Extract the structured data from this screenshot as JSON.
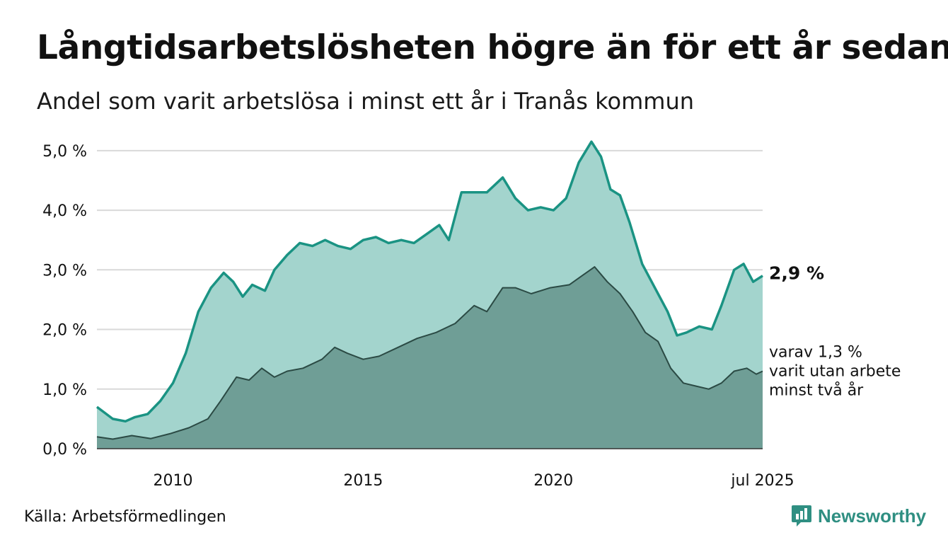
{
  "title": "Långtidsarbetslösheten högre än för ett år sedan",
  "subtitle": "Andel som varit arbetslösa i minst ett år i Tranås kommun",
  "source": "Källa: Arbetsförmedlingen",
  "brand": {
    "name": "Newsworthy",
    "icon": "bar-chart-logo-icon",
    "color": "#2f8f82"
  },
  "colors": {
    "upper_fill": "#a3d4cd",
    "upper_line": "#1a9383",
    "lower_fill": "#6f9e96",
    "lower_line": "#2b4a44",
    "grid": "#d9d9d9"
  },
  "chart_data": {
    "type": "area",
    "x_start": "2008-01",
    "x_end": "2025-07",
    "x_ticks": [
      {
        "date": "2010-01",
        "label": "2010"
      },
      {
        "date": "2015-01",
        "label": "2015"
      },
      {
        "date": "2020-01",
        "label": "2020"
      },
      {
        "date": "2025-07",
        "label": "jul 2025"
      }
    ],
    "ylim": [
      0,
      5.2
    ],
    "y_ticks": [
      {
        "value": 0,
        "label": "0,0 %"
      },
      {
        "value": 1,
        "label": "1,0 %"
      },
      {
        "value": 2,
        "label": "2,0 %"
      },
      {
        "value": 3,
        "label": "3,0 %"
      },
      {
        "value": 4,
        "label": "4,0 %"
      },
      {
        "value": 5,
        "label": "5,0 %"
      }
    ],
    "grid": true,
    "series": [
      {
        "key": "min1",
        "points": [
          [
            "2008-01",
            0.7
          ],
          [
            "2008-06",
            0.5
          ],
          [
            "2008-10",
            0.46
          ],
          [
            "2009-01",
            0.53
          ],
          [
            "2009-05",
            0.58
          ],
          [
            "2009-09",
            0.8
          ],
          [
            "2010-01",
            1.1
          ],
          [
            "2010-05",
            1.6
          ],
          [
            "2010-09",
            2.3
          ],
          [
            "2011-01",
            2.7
          ],
          [
            "2011-05",
            2.95
          ],
          [
            "2011-08",
            2.8
          ],
          [
            "2011-11",
            2.55
          ],
          [
            "2012-02",
            2.75
          ],
          [
            "2012-06",
            2.65
          ],
          [
            "2012-09",
            3.0
          ],
          [
            "2013-01",
            3.25
          ],
          [
            "2013-05",
            3.45
          ],
          [
            "2013-09",
            3.4
          ],
          [
            "2014-01",
            3.5
          ],
          [
            "2014-05",
            3.4
          ],
          [
            "2014-09",
            3.35
          ],
          [
            "2015-01",
            3.5
          ],
          [
            "2015-05",
            3.55
          ],
          [
            "2015-09",
            3.45
          ],
          [
            "2016-01",
            3.5
          ],
          [
            "2016-05",
            3.45
          ],
          [
            "2016-09",
            3.6
          ],
          [
            "2017-01",
            3.75
          ],
          [
            "2017-04",
            3.5
          ],
          [
            "2017-08",
            4.3
          ],
          [
            "2017-12",
            4.3
          ],
          [
            "2018-04",
            4.3
          ],
          [
            "2018-09",
            4.55
          ],
          [
            "2019-01",
            4.2
          ],
          [
            "2019-05",
            4.0
          ],
          [
            "2019-09",
            4.05
          ],
          [
            "2020-01",
            4.0
          ],
          [
            "2020-05",
            4.2
          ],
          [
            "2020-09",
            4.8
          ],
          [
            "2021-01",
            5.15
          ],
          [
            "2021-04",
            4.9
          ],
          [
            "2021-07",
            4.35
          ],
          [
            "2021-10",
            4.25
          ],
          [
            "2022-01",
            3.8
          ],
          [
            "2022-05",
            3.1
          ],
          [
            "2022-09",
            2.7
          ],
          [
            "2023-01",
            2.3
          ],
          [
            "2023-04",
            1.9
          ],
          [
            "2023-07",
            1.95
          ],
          [
            "2023-11",
            2.05
          ],
          [
            "2024-03",
            2.0
          ],
          [
            "2024-06",
            2.4
          ],
          [
            "2024-10",
            3.0
          ],
          [
            "2025-01",
            3.1
          ],
          [
            "2025-04",
            2.8
          ],
          [
            "2025-07",
            2.9
          ]
        ]
      },
      {
        "key": "min2",
        "points": [
          [
            "2008-01",
            0.2
          ],
          [
            "2008-06",
            0.16
          ],
          [
            "2008-12",
            0.22
          ],
          [
            "2009-06",
            0.17
          ],
          [
            "2009-12",
            0.25
          ],
          [
            "2010-06",
            0.35
          ],
          [
            "2010-12",
            0.5
          ],
          [
            "2011-04",
            0.8
          ],
          [
            "2011-09",
            1.2
          ],
          [
            "2012-01",
            1.15
          ],
          [
            "2012-05",
            1.35
          ],
          [
            "2012-09",
            1.2
          ],
          [
            "2013-01",
            1.3
          ],
          [
            "2013-06",
            1.35
          ],
          [
            "2013-12",
            1.5
          ],
          [
            "2014-04",
            1.7
          ],
          [
            "2014-08",
            1.6
          ],
          [
            "2015-01",
            1.5
          ],
          [
            "2015-06",
            1.55
          ],
          [
            "2015-12",
            1.7
          ],
          [
            "2016-06",
            1.85
          ],
          [
            "2016-12",
            1.95
          ],
          [
            "2017-06",
            2.1
          ],
          [
            "2017-12",
            2.4
          ],
          [
            "2018-04",
            2.3
          ],
          [
            "2018-09",
            2.7
          ],
          [
            "2019-01",
            2.7
          ],
          [
            "2019-06",
            2.6
          ],
          [
            "2019-12",
            2.7
          ],
          [
            "2020-06",
            2.75
          ],
          [
            "2020-10",
            2.9
          ],
          [
            "2021-02",
            3.05
          ],
          [
            "2021-06",
            2.8
          ],
          [
            "2021-10",
            2.6
          ],
          [
            "2022-02",
            2.3
          ],
          [
            "2022-06",
            1.95
          ],
          [
            "2022-10",
            1.8
          ],
          [
            "2023-02",
            1.35
          ],
          [
            "2023-06",
            1.1
          ],
          [
            "2023-10",
            1.05
          ],
          [
            "2024-02",
            1.0
          ],
          [
            "2024-06",
            1.1
          ],
          [
            "2024-10",
            1.3
          ],
          [
            "2025-02",
            1.35
          ],
          [
            "2025-05",
            1.25
          ],
          [
            "2025-07",
            1.3
          ]
        ]
      }
    ],
    "annotations": [
      {
        "series": "min1",
        "lines": [
          "2,9 %"
        ]
      },
      {
        "series": "min2",
        "lines": [
          "varav 1,3 %",
          "varit utan arbete",
          "minst två år"
        ]
      }
    ]
  }
}
